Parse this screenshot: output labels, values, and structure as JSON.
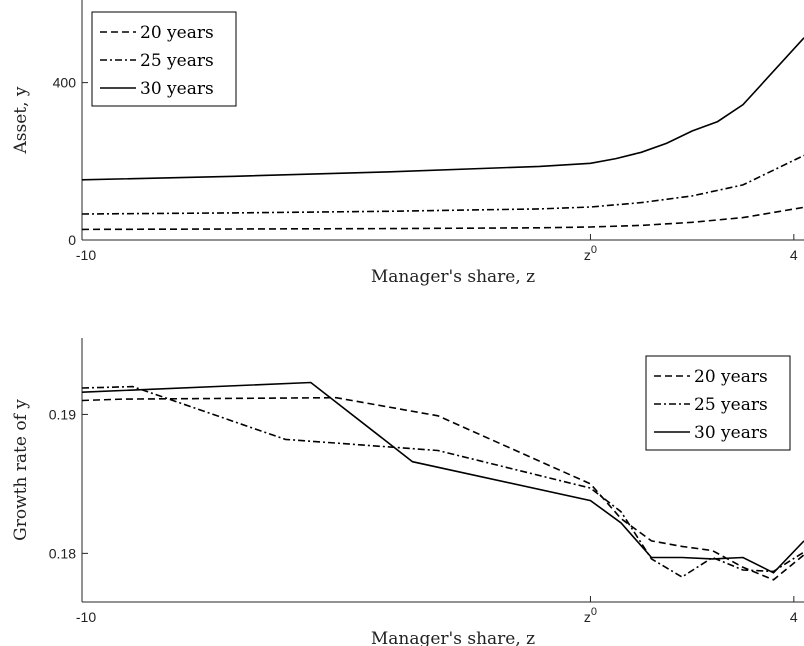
{
  "chart_data": [
    {
      "type": "line",
      "xlabel": "Manager's share, z",
      "ylabel": "Asset, y",
      "x_tick_labels": [
        "-10",
        "z⁰",
        "4"
      ],
      "y_tick_labels": [
        "0",
        "400"
      ],
      "y_ticks": [
        0,
        400
      ],
      "xlim": [
        -10,
        4.2
      ],
      "ylim": [
        0,
        610
      ],
      "legend": "top-left",
      "series": [
        {
          "name": "20 years",
          "style": "dashed",
          "x": [
            -10,
            -7,
            -4,
            -1,
            0,
            1,
            2,
            3,
            4.2
          ],
          "y": [
            27,
            28,
            29,
            31,
            33,
            37,
            45,
            57,
            83
          ]
        },
        {
          "name": "25 years",
          "style": "dashdot",
          "x": [
            -10,
            -7,
            -4,
            -1,
            0,
            1,
            2,
            3,
            4.2
          ],
          "y": [
            66,
            69,
            73,
            79,
            84,
            95,
            112,
            140,
            215
          ]
        },
        {
          "name": "30 years",
          "style": "solid",
          "x": [
            -10,
            -7,
            -4,
            -1,
            0,
            0.5,
            1,
            1.5,
            2,
            2.5,
            3,
            4.2
          ],
          "y": [
            153,
            162,
            173,
            187,
            195,
            207,
            223,
            246,
            277,
            301,
            344,
            514
          ]
        }
      ]
    },
    {
      "type": "line",
      "xlabel": "Manager's share, z",
      "ylabel": "Growth rate of y",
      "x_tick_labels": [
        "-10",
        "z⁰",
        "4"
      ],
      "y_tick_labels": [
        "0.18",
        "0.19"
      ],
      "y_ticks": [
        0.18,
        0.19
      ],
      "xlim": [
        -10,
        4.2
      ],
      "ylim": [
        0.1765,
        0.1955
      ],
      "legend": "top-right",
      "series": [
        {
          "name": "20 years",
          "style": "dashed",
          "x": [
            -10,
            -9.2,
            -5,
            -3,
            0,
            0.6,
            1.2,
            1.8,
            2.4,
            3,
            3.6,
            4.2
          ],
          "y": [
            0.191,
            0.1911,
            0.1912,
            0.1899,
            0.185,
            0.1825,
            0.1809,
            0.1805,
            0.1802,
            0.179,
            0.1781,
            0.1799
          ]
        },
        {
          "name": "25 years",
          "style": "dashdot",
          "x": [
            -10,
            -9,
            -6,
            -3,
            0,
            0.6,
            1.2,
            1.8,
            2.4,
            3,
            3.6,
            4.2
          ],
          "y": [
            0.1919,
            0.192,
            0.1882,
            0.1874,
            0.1847,
            0.183,
            0.1796,
            0.1783,
            0.1797,
            0.1788,
            0.1787,
            0.1801
          ]
        },
        {
          "name": "30 years",
          "style": "solid",
          "x": [
            -10,
            -5.5,
            -3.5,
            0,
            0.6,
            1.2,
            1.8,
            2.4,
            3,
            3.6,
            4.2
          ],
          "y": [
            0.1916,
            0.1923,
            0.1866,
            0.1838,
            0.1822,
            0.1797,
            0.1797,
            0.1796,
            0.1797,
            0.1786,
            0.1809
          ]
        }
      ]
    }
  ]
}
